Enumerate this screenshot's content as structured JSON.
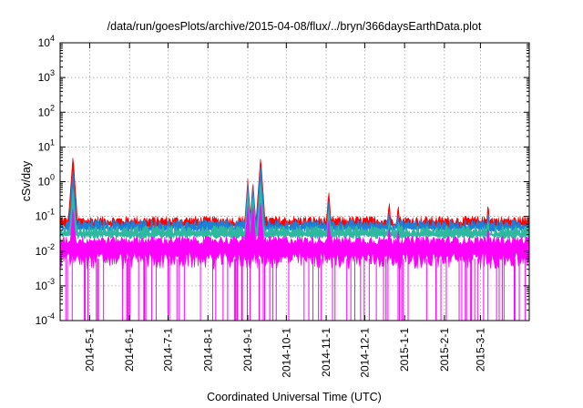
{
  "chart_data": {
    "type": "area",
    "title": "/data/run/goesPlots/archive/2015-04-08/flux/../bryn/366daysEarthData.plot",
    "xlabel": "Coordinated Universal Time (UTC)",
    "ylabel": "cSv/day",
    "y_scale": "log",
    "ylim": [
      0.0001,
      10000
    ],
    "y_ticks": [
      {
        "value": 0.0001,
        "base": "10",
        "exp": "-4"
      },
      {
        "value": 0.001,
        "base": "10",
        "exp": "-3"
      },
      {
        "value": 0.01,
        "base": "10",
        "exp": "-2"
      },
      {
        "value": 0.1,
        "base": "10",
        "exp": "-1"
      },
      {
        "value": 1,
        "base": "10",
        "exp": "0"
      },
      {
        "value": 10,
        "base": "10",
        "exp": "1"
      },
      {
        "value": 100,
        "base": "10",
        "exp": "2"
      },
      {
        "value": 1000,
        "base": "10",
        "exp": "3"
      },
      {
        "value": 10000,
        "base": "10",
        "exp": "4"
      }
    ],
    "xlim": [
      "2014-04-08",
      "2015-04-08"
    ],
    "x_ticks": [
      "2014-5-1",
      "2014-6-1",
      "2014-7-1",
      "2014-8-1",
      "2014-9-1",
      "2014-10-1",
      "2014-11-1",
      "2014-12-1",
      "2015-1-1",
      "2015-2-1",
      "2015-3-1"
    ],
    "grid": true,
    "series_colors": [
      "#ff0000",
      "#1e7fd6",
      "#2fb8a0",
      "#ff00ff"
    ],
    "series_typical": [
      0.075,
      0.06,
      0.04,
      0.02
    ],
    "series_min": [
      0.05,
      0.04,
      0.025,
      0.0001
    ],
    "spikes": [
      {
        "date": "2014-04-18",
        "values": [
          6,
          2.5,
          0.8,
          0.2
        ]
      },
      {
        "date": "2014-09-01",
        "values": [
          1.2,
          0.9,
          0.5,
          0.2
        ]
      },
      {
        "date": "2014-09-05",
        "values": [
          1.1,
          0.9,
          0.5,
          0.25
        ]
      },
      {
        "date": "2014-09-11",
        "values": [
          5.5,
          3.5,
          1.2,
          0.3
        ]
      },
      {
        "date": "2014-11-03",
        "values": [
          0.6,
          0.35,
          0.2,
          0.1
        ]
      },
      {
        "date": "2014-12-20",
        "values": [
          0.3,
          0.18,
          0.1,
          0.06
        ]
      },
      {
        "date": "2014-12-27",
        "values": [
          0.25,
          0.15,
          0.09,
          0.05
        ]
      },
      {
        "date": "2015-03-07",
        "values": [
          0.27,
          0.18,
          0.1,
          0.06
        ]
      }
    ]
  }
}
